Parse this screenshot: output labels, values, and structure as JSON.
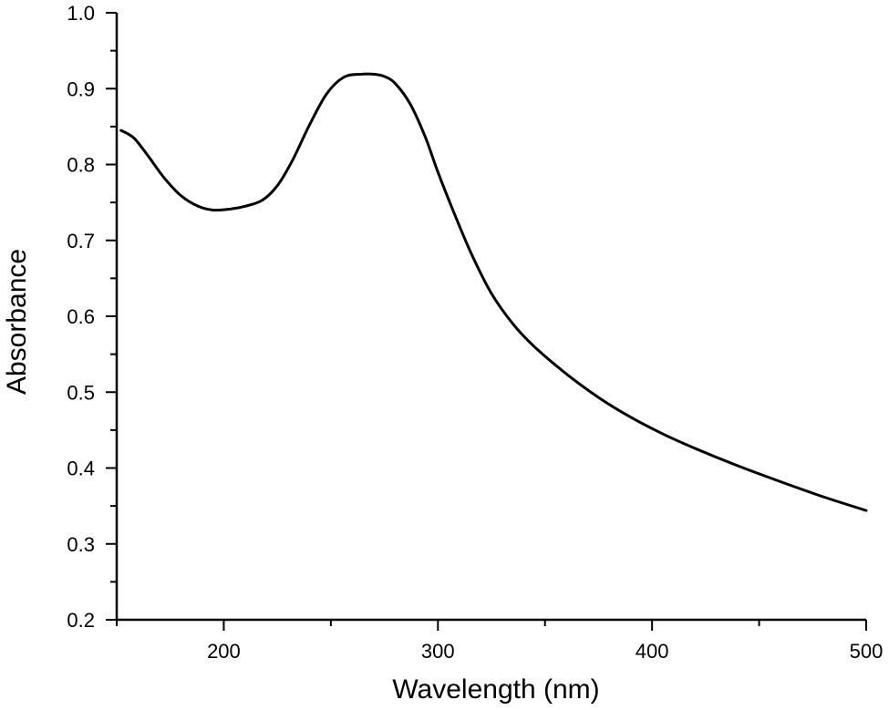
{
  "chart_data": {
    "type": "line",
    "title": "",
    "xlabel": "Wavelength (nm)",
    "ylabel": "Absorbance",
    "xlim": [
      150,
      500
    ],
    "ylim": [
      0.2,
      1.0
    ],
    "x_ticks": [
      200,
      300,
      400,
      500
    ],
    "x_tick_labels": [
      "200",
      "300",
      "400",
      "500"
    ],
    "x_minor_ticks": [
      150,
      250,
      350,
      450
    ],
    "y_ticks": [
      0.2,
      0.3,
      0.4,
      0.5,
      0.6,
      0.7,
      0.8,
      0.9,
      1.0
    ],
    "y_tick_labels": [
      "0.2",
      "0.3",
      "0.4",
      "0.5",
      "0.6",
      "0.7",
      "0.8",
      "0.9",
      "1.0"
    ],
    "y_minor_ticks": [
      0.25,
      0.35,
      0.45,
      0.55,
      0.65,
      0.75,
      0.85,
      0.95
    ],
    "grid": false,
    "line_color": "#000000",
    "series": [
      {
        "x": [
          152,
          158,
          165,
          172,
          180,
          188,
          195,
          202,
          210,
          218,
          225,
          232,
          240,
          248,
          256,
          264,
          270,
          275,
          280,
          287,
          294,
          300,
          308,
          316,
          325,
          335,
          345,
          360,
          375,
          390,
          405,
          420,
          440,
          460,
          480,
          500
        ],
        "y": [
          0.845,
          0.835,
          0.81,
          0.783,
          0.759,
          0.745,
          0.74,
          0.741,
          0.745,
          0.753,
          0.772,
          0.805,
          0.852,
          0.893,
          0.915,
          0.919,
          0.919,
          0.916,
          0.907,
          0.88,
          0.837,
          0.79,
          0.733,
          0.68,
          0.63,
          0.59,
          0.56,
          0.524,
          0.493,
          0.467,
          0.445,
          0.426,
          0.403,
          0.382,
          0.362,
          0.344
        ]
      }
    ]
  }
}
